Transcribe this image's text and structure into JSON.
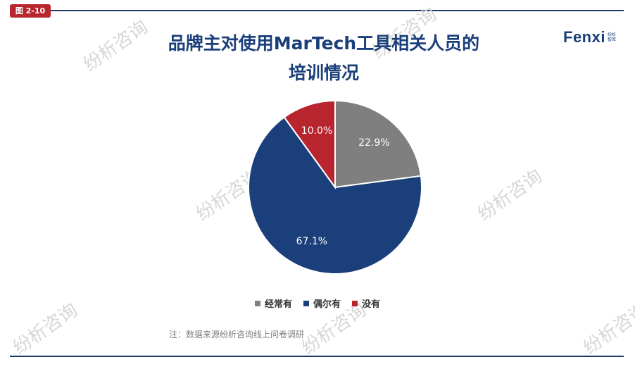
{
  "figure_badge": "图 2-10",
  "title": {
    "line1": "品牌主对使用MarTech工具相关人员的",
    "line2": "培训情况"
  },
  "logo": {
    "main": "Fenxi",
    "sub_top": "纷析",
    "sub_bottom": "智库"
  },
  "watermark_text": "纷析咨询",
  "source": "注：数据来源纷析咨询线上问卷调研",
  "chart_data": {
    "type": "pie",
    "categories": [
      "经常有",
      "偶尔有",
      "没有"
    ],
    "values": [
      22.9,
      67.1,
      10.0
    ],
    "labels": [
      "22.9%",
      "67.1%",
      "10.0%"
    ],
    "colors": [
      "#7f7f7f",
      "#1a3f7a",
      "#b8252f"
    ],
    "start": "12 o'clock",
    "direction": "clockwise",
    "legend_position": "bottom"
  }
}
